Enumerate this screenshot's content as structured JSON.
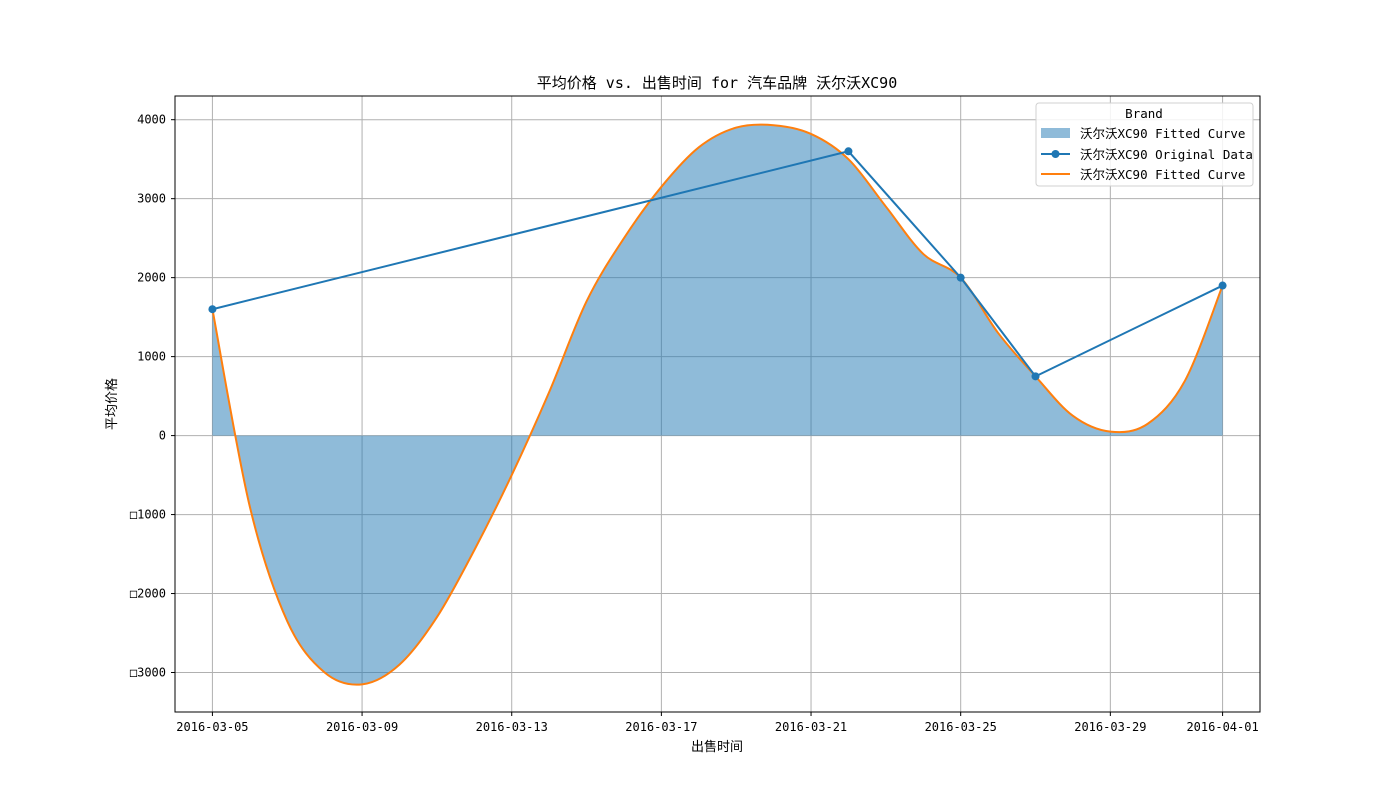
{
  "colors": {
    "original": "#1f77b4",
    "fitted": "#ff7f0e",
    "fill": "#1f77b4",
    "grid": "#b0b0b0",
    "axes": "#000000"
  },
  "chart_data": {
    "type": "line",
    "title": "平均价格 vs. 出售时间 for 汽车品牌 沃尔沃XC90",
    "xlabel": "出售时间",
    "ylabel": "平均价格",
    "x_axis_type": "date",
    "xlim": [
      "2016-03-04",
      "2016-04-02"
    ],
    "ylim": [
      -3500,
      4300
    ],
    "x_ticks": [
      "2016-03-05",
      "2016-03-09",
      "2016-03-13",
      "2016-03-17",
      "2016-03-21",
      "2016-03-25",
      "2016-03-29",
      "2016-04-01"
    ],
    "y_ticks": [
      4000,
      3000,
      2000,
      1000,
      0,
      -1000,
      -2000,
      -3000
    ],
    "y_tick_labels": [
      "4000",
      "3000",
      "2000",
      "1000",
      "0",
      "□1000",
      "□2000",
      "□3000"
    ],
    "grid": true,
    "legend": {
      "title": "Brand",
      "placement": "top-right",
      "entries": [
        {
          "label": "沃尔沃XC90 Fitted Curve",
          "kind": "fill"
        },
        {
          "label": "沃尔沃XC90 Original Data",
          "kind": "line-marker"
        },
        {
          "label": "沃尔沃XC90 Fitted Curve",
          "kind": "line"
        }
      ]
    },
    "series": [
      {
        "name": "沃尔沃XC90 Original Data",
        "kind": "line-marker",
        "x": [
          "2016-03-05",
          "2016-03-22",
          "2016-03-25",
          "2016-03-27",
          "2016-04-01"
        ],
        "y": [
          1600,
          3600,
          2000,
          750,
          1900
        ]
      },
      {
        "name": "沃尔沃XC90 Fitted Curve",
        "kind": "line-with-fill",
        "x": [
          "2016-03-05",
          "2016-03-06",
          "2016-03-07",
          "2016-03-08",
          "2016-03-09",
          "2016-03-10",
          "2016-03-11",
          "2016-03-12",
          "2016-03-13",
          "2016-03-14",
          "2016-03-15",
          "2016-03-16",
          "2016-03-17",
          "2016-03-18",
          "2016-03-19",
          "2016-03-20",
          "2016-03-21",
          "2016-03-22",
          "2016-03-23",
          "2016-03-24",
          "2016-03-25",
          "2016-03-26",
          "2016-03-27",
          "2016-03-28",
          "2016-03-29",
          "2016-03-30",
          "2016-03-31",
          "2016-04-01"
        ],
        "y": [
          1600,
          -900,
          -2350,
          -3000,
          -3150,
          -2900,
          -2300,
          -1450,
          -500,
          550,
          1700,
          2500,
          3150,
          3650,
          3900,
          3930,
          3820,
          3500,
          2900,
          2300,
          2000,
          1300,
          750,
          250,
          50,
          150,
          700,
          1900
        ]
      }
    ]
  }
}
